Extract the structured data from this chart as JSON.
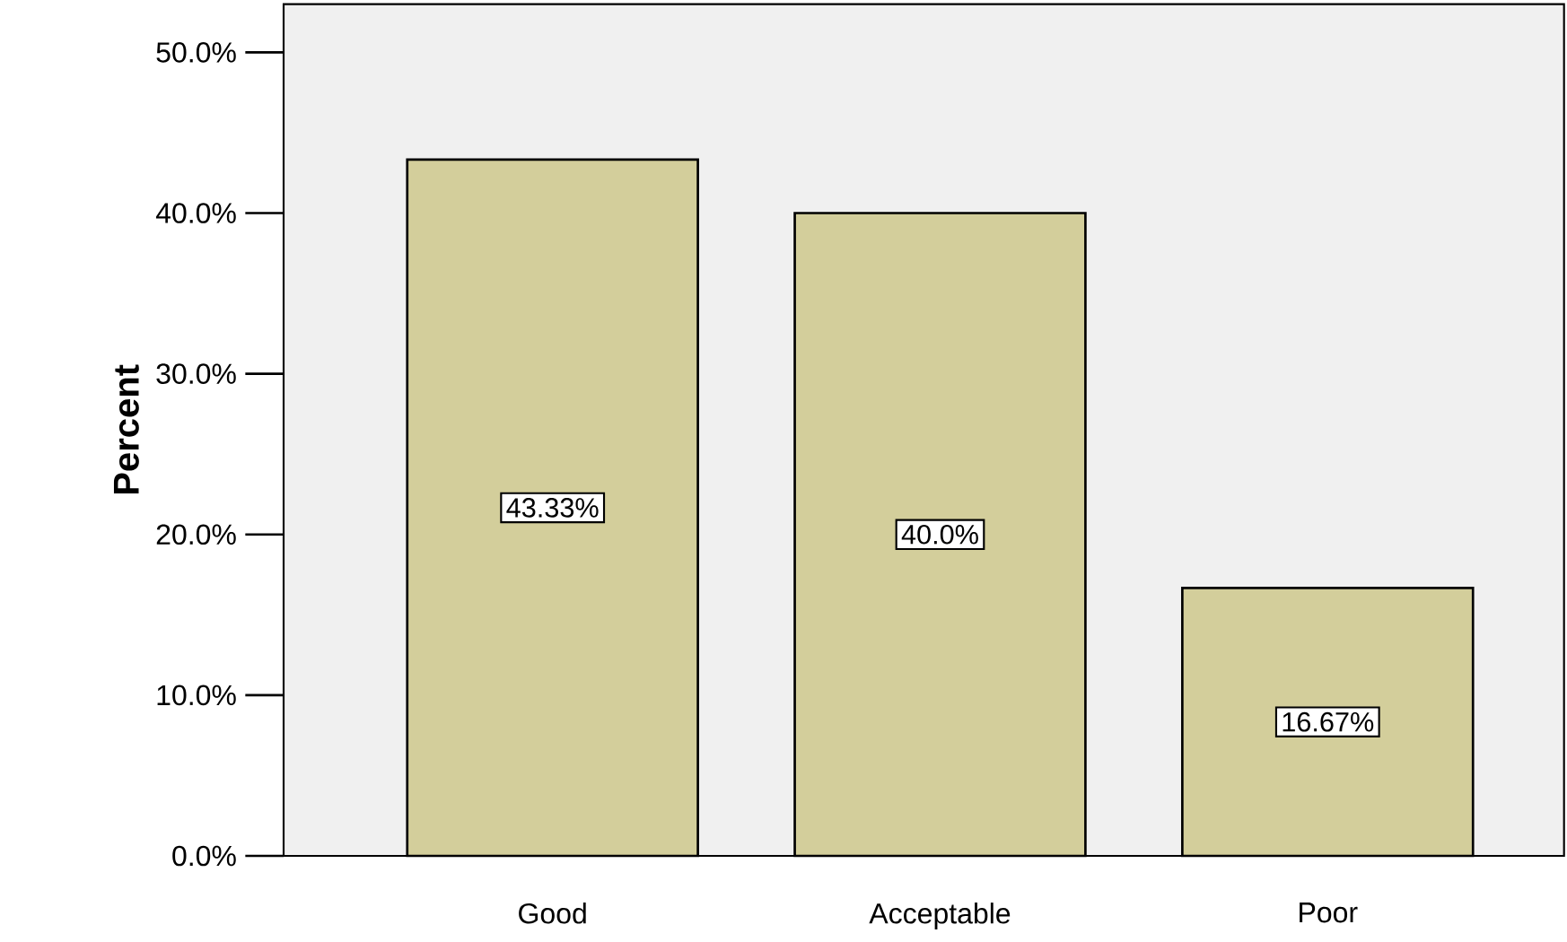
{
  "chart_data": {
    "type": "bar",
    "ylabel": "Percent",
    "categories": [
      "Good",
      "Acceptable",
      "Poor"
    ],
    "values": [
      43.33,
      40.0,
      16.67
    ],
    "value_labels": [
      "43.33%",
      "40.0%",
      "16.67%"
    ],
    "color": "#d3ce9b",
    "ylim": [
      0,
      53
    ],
    "yticks": [
      {
        "value": 0,
        "label": "0.0%"
      },
      {
        "value": 10,
        "label": "10.0%"
      },
      {
        "value": 20,
        "label": "20.0%"
      },
      {
        "value": 30,
        "label": "30.0%"
      },
      {
        "value": 40,
        "label": "40.0%"
      },
      {
        "value": 50,
        "label": "50.0%"
      }
    ]
  }
}
